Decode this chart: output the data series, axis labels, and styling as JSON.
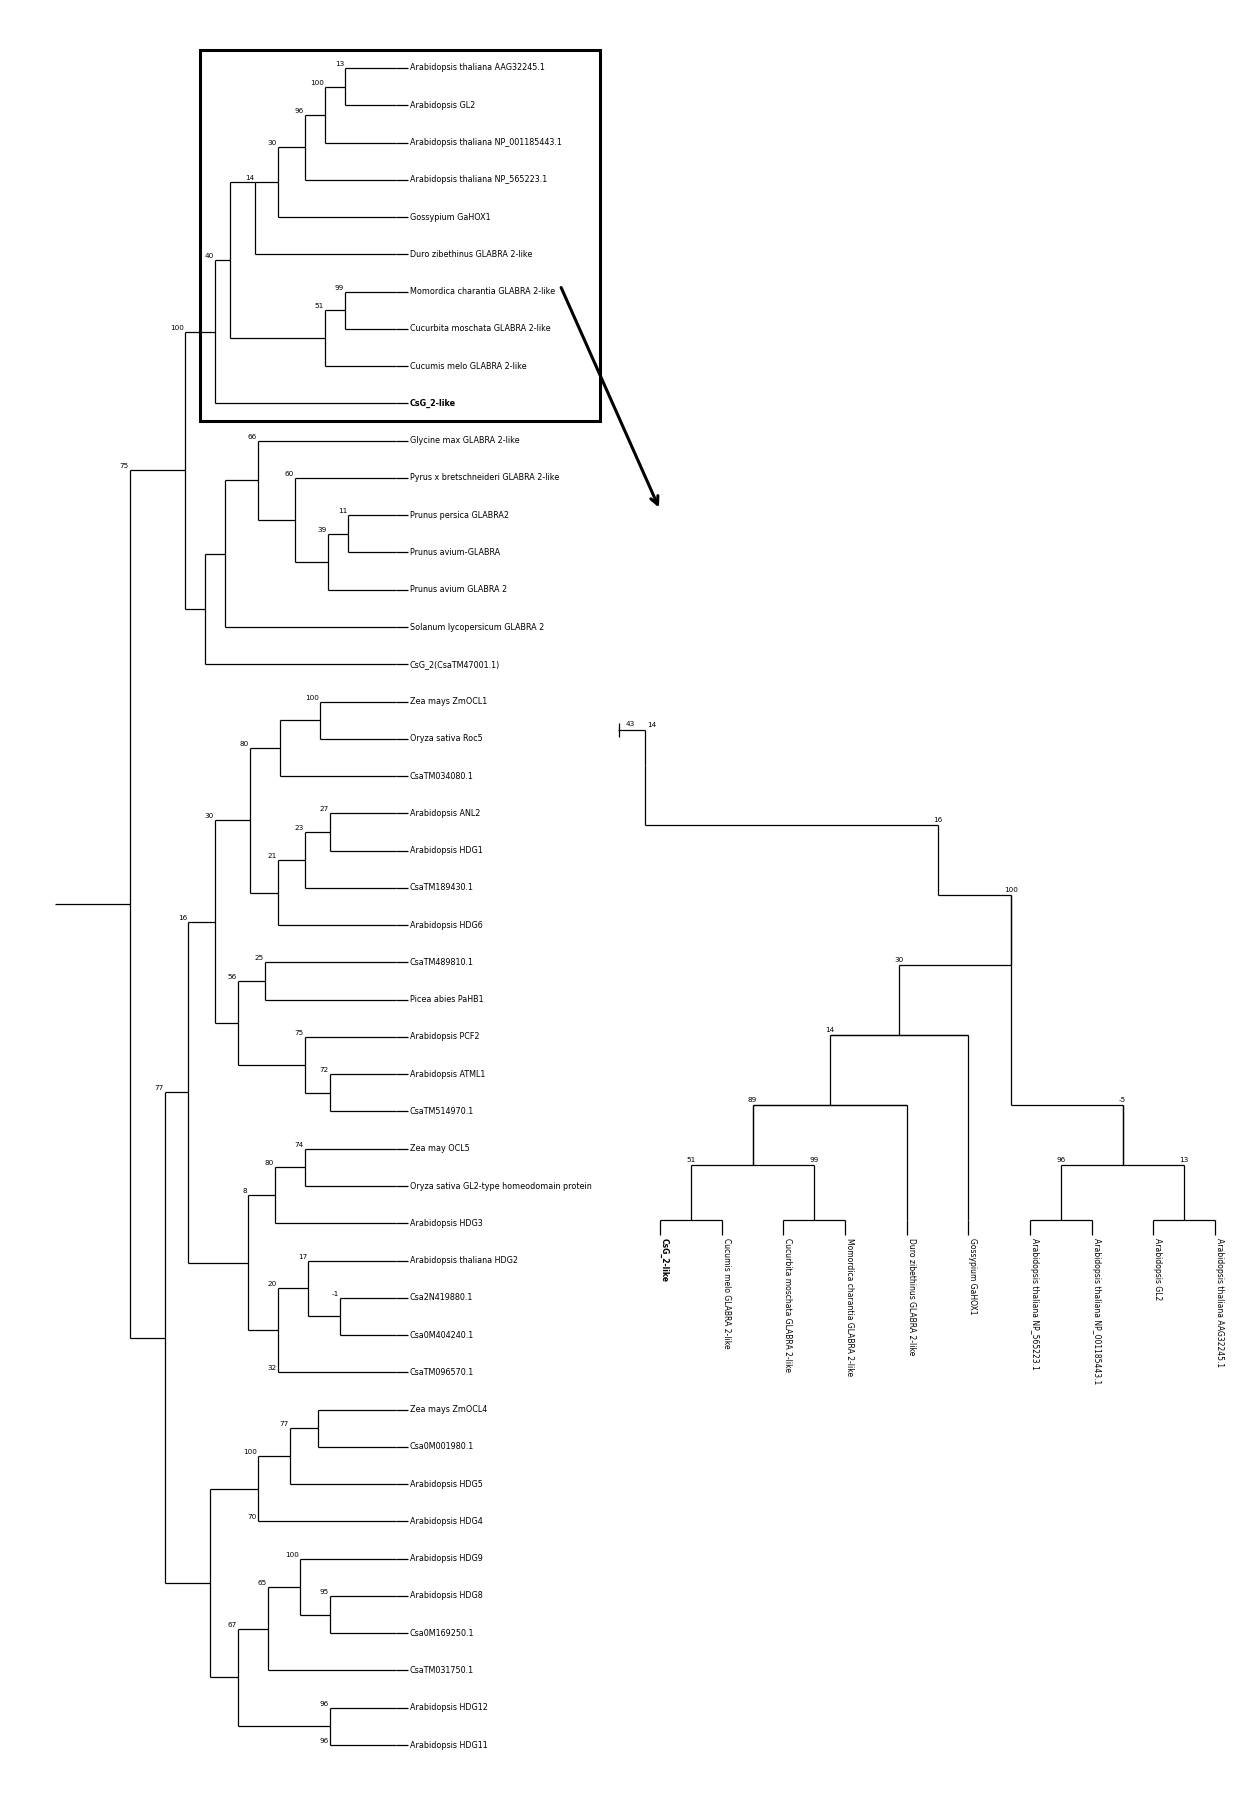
{
  "fig_width": 12.4,
  "fig_height": 18.01,
  "bg_color": "#ffffff",
  "line_color": "#000000",
  "fs_label": 5.8,
  "fs_bs": 5.2,
  "leaves": [
    "Arabidopsis thaliana AAG32245.1",
    "Arabidopsis GL2",
    "Arabidopsis thaliana NP_001185443.1",
    "Arabidopsis thaliana NP_565223.1",
    "Gossypium GaHOX1",
    "Duro zibethinus GLABRA 2-like",
    "Momordica charantia GLABRA 2-like",
    "Cucurbita moschata GLABRA 2-like",
    "Cucumis melo GLABRA 2-like",
    "CsG_2-like",
    "Glycine max GLABRA 2-like",
    "Pyrus x bretschneideri GLABRA 2-like",
    "Prunus persica GLABRA2",
    "Prunus avium-GLABRA",
    "Prunus avium GLABRA 2",
    "Solanum lycopersicum GLABRA 2",
    "CsG_2(CsaTM47001.1)",
    "Zea mays ZmOCL1",
    "Oryza sativa Roc5",
    "CsaTM034080.1",
    "Arabidopsis ANL2",
    "Arabidopsis HDG1",
    "CsaTM189430.1",
    "Arabidopsis HDG6",
    "CsaTM489810.1",
    "Picea abies PaHB1",
    "Arabidopsis PCF2",
    "Arabidopsis ATML1",
    "CsaTM514970.1",
    "Zea may OCL5",
    "Oryza sativa GL2-type homeodomain protein",
    "Arabidopsis HDG3",
    "Arabidopsis thaliana HDG2",
    "Csa2N419880.1",
    "Csa0M404240.1",
    "CsaTM096570.1",
    "Zea mays ZmOCL4",
    "Csa0M001980.1",
    "Arabidopsis HDG5",
    "Arabidopsis HDG4",
    "Arabidopsis HDG9",
    "Arabidopsis HDG8",
    "Csa0M169250.1",
    "CsaTM031750.1",
    "Arabidopsis HDG12",
    "Arabidopsis HDG11"
  ],
  "bold_leaf": "CsG_2-like",
  "enl_leaves": [
    "CsG_2-like",
    "Cucumis melo GLABRA 2-like",
    "Cucurbita moschata GLABRA 2-like",
    "Momordica charantia GLABRA 2-like",
    "Duro zibethinus GLABRA 2-like",
    "Gossypium GaHOX1",
    "Arabidopsis thaliana NP_565223.1",
    "Arabidopsis thaliana NP_001185443.1",
    "Arabidopsis GL2",
    "Arabidopsis thaliana AAG32245.1"
  ]
}
